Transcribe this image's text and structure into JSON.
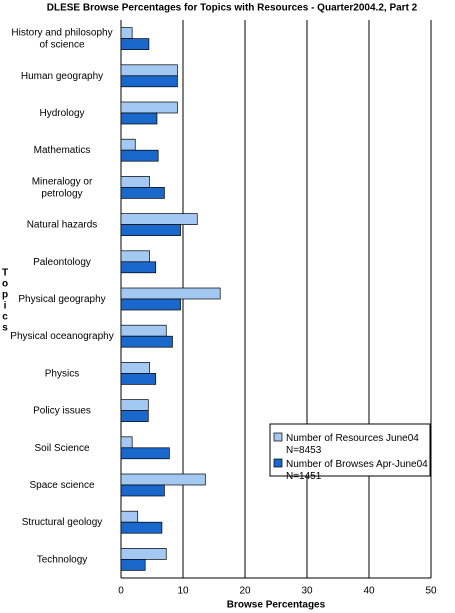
{
  "chart_data": {
    "type": "hbar",
    "title": "DLESE Browse Percentages for Topics with Resources - Quarter2004.2, Part 2",
    "x_label": "Browse Percentages",
    "y_label": "Topics",
    "categories": [
      "History and philosophy of science",
      "Human geography",
      "Hydrology",
      "Mathematics",
      "Mineralogy or petrology",
      "Natural hazards",
      "Paleontology",
      "Physical geography",
      "Physical oceanography",
      "Physics",
      "Policy issues",
      "Soil Science",
      "Space science",
      "Structural geology",
      "Technology"
    ],
    "series": [
      {
        "name": "Number of Resources June04 N=8453",
        "color": "#a3c8f2",
        "values": [
          1.8,
          9.1,
          9.1,
          2.3,
          4.6,
          12.3,
          4.6,
          16.0,
          7.3,
          4.6,
          4.4,
          1.8,
          13.6,
          2.7,
          7.3
        ]
      },
      {
        "name": "Number of Browses Apr-June04 N=1451",
        "color": "#1a68cc",
        "values": [
          4.5,
          9.1,
          5.8,
          6.0,
          7.0,
          9.6,
          5.6,
          9.6,
          8.3,
          5.6,
          4.4,
          7.8,
          7.0,
          6.6,
          3.9
        ]
      }
    ],
    "xlim": [
      0,
      50
    ],
    "xticks": [
      0,
      10,
      20,
      30,
      40,
      50
    ],
    "grid": true,
    "legend": "lower-right"
  }
}
